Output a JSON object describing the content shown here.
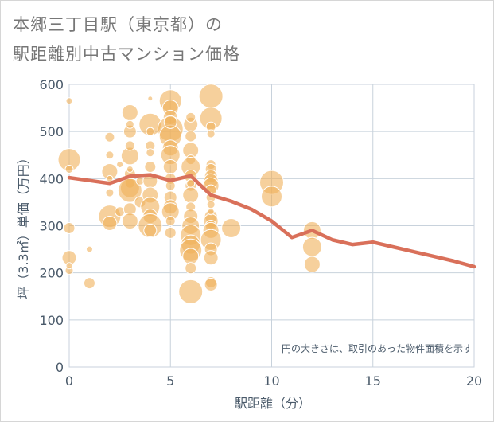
{
  "title_lines": [
    "本郷三丁目駅（東京都）の",
    "駅距離別中古マンション価格"
  ],
  "chart_data": {
    "type": "scatter+line",
    "xlabel": "駅距離（分）",
    "ylabel": "坪（3.3㎡）単価（万円）",
    "xlim": [
      0,
      20
    ],
    "ylim": [
      0,
      600
    ],
    "xticks": [
      0,
      5,
      10,
      15,
      20
    ],
    "yticks": [
      0,
      100,
      200,
      300,
      400,
      500,
      600
    ],
    "annotation": "円の大きさは、取引のあった物件面積を示す",
    "colors": {
      "bubble": "#f0b05a",
      "line": "#d9705a",
      "grid": "#c8d2dc",
      "text": "#4a5a6a"
    },
    "line": {
      "x": [
        0,
        1,
        2,
        3,
        4,
        5,
        6,
        7,
        8,
        9,
        10,
        11,
        12,
        13,
        14,
        15,
        16,
        17,
        18,
        19,
        20
      ],
      "y": [
        402,
        396,
        390,
        405,
        408,
        396,
        406,
        365,
        352,
        335,
        310,
        275,
        290,
        270,
        260,
        265,
        255,
        245,
        235,
        225,
        213
      ]
    },
    "bubbles": [
      [
        0,
        440,
        14
      ],
      [
        0,
        565,
        4
      ],
      [
        0,
        295,
        7
      ],
      [
        0,
        232,
        9
      ],
      [
        0,
        205,
        5
      ],
      [
        0,
        215,
        4
      ],
      [
        0,
        420,
        5
      ],
      [
        1,
        178,
        7
      ],
      [
        1,
        250,
        4
      ],
      [
        2,
        415,
        10
      ],
      [
        2,
        320,
        14
      ],
      [
        2,
        305,
        9
      ],
      [
        2,
        370,
        5
      ],
      [
        2,
        450,
        5
      ],
      [
        2,
        488,
        6
      ],
      [
        2,
        400,
        4
      ],
      [
        2.5,
        330,
        6
      ],
      [
        2.5,
        430,
        4
      ],
      [
        3,
        540,
        10
      ],
      [
        3,
        500,
        8
      ],
      [
        3,
        448,
        11
      ],
      [
        3,
        410,
        7
      ],
      [
        3,
        390,
        6
      ],
      [
        3,
        380,
        12
      ],
      [
        3,
        375,
        15
      ],
      [
        3,
        335,
        8
      ],
      [
        3,
        310,
        10
      ],
      [
        3,
        470,
        6
      ],
      [
        3,
        515,
        5
      ],
      [
        3,
        420,
        4
      ],
      [
        3.5,
        350,
        7
      ],
      [
        3.5,
        395,
        5
      ],
      [
        4,
        515,
        14
      ],
      [
        4,
        470,
        6
      ],
      [
        4,
        455,
        5
      ],
      [
        4,
        425,
        7
      ],
      [
        4,
        395,
        9
      ],
      [
        4,
        365,
        10
      ],
      [
        4,
        340,
        12
      ],
      [
        4,
        320,
        9
      ],
      [
        4,
        300,
        15
      ],
      [
        4,
        290,
        8
      ],
      [
        4,
        570,
        3
      ],
      [
        4,
        500,
        5
      ],
      [
        5,
        565,
        14
      ],
      [
        5,
        550,
        10
      ],
      [
        5,
        530,
        9
      ],
      [
        5,
        505,
        16
      ],
      [
        5,
        490,
        14
      ],
      [
        5,
        465,
        10
      ],
      [
        5,
        450,
        12
      ],
      [
        5,
        425,
        9
      ],
      [
        5,
        400,
        7
      ],
      [
        5,
        385,
        6
      ],
      [
        5,
        360,
        8
      ],
      [
        5,
        340,
        9
      ],
      [
        5,
        330,
        11
      ],
      [
        5,
        310,
        6
      ],
      [
        5,
        285,
        7
      ],
      [
        5,
        520,
        8
      ],
      [
        6,
        515,
        9
      ],
      [
        6,
        490,
        7
      ],
      [
        6,
        460,
        10
      ],
      [
        6,
        440,
        6
      ],
      [
        6,
        425,
        12
      ],
      [
        6,
        405,
        8
      ],
      [
        6,
        385,
        7
      ],
      [
        6,
        365,
        10
      ],
      [
        6,
        340,
        6
      ],
      [
        6,
        320,
        9
      ],
      [
        6,
        300,
        11
      ],
      [
        6,
        280,
        13
      ],
      [
        6,
        260,
        12
      ],
      [
        6,
        248,
        14
      ],
      [
        6,
        235,
        10
      ],
      [
        6,
        210,
        7
      ],
      [
        6,
        160,
        15
      ],
      [
        6,
        530,
        6
      ],
      [
        6,
        390,
        5
      ],
      [
        7,
        575,
        15
      ],
      [
        7,
        528,
        14
      ],
      [
        7,
        510,
        6
      ],
      [
        7,
        495,
        5
      ],
      [
        7,
        430,
        6
      ],
      [
        7,
        420,
        7
      ],
      [
        7,
        405,
        8
      ],
      [
        7,
        395,
        9
      ],
      [
        7,
        385,
        10
      ],
      [
        7,
        375,
        7
      ],
      [
        7,
        360,
        6
      ],
      [
        7,
        345,
        5
      ],
      [
        7,
        320,
        8
      ],
      [
        7,
        310,
        9
      ],
      [
        7,
        300,
        7
      ],
      [
        7,
        290,
        10
      ],
      [
        7,
        270,
        13
      ],
      [
        7,
        250,
        8
      ],
      [
        7,
        232,
        9
      ],
      [
        7,
        180,
        7
      ],
      [
        7,
        175,
        8
      ],
      [
        7,
        330,
        4
      ],
      [
        8,
        295,
        12
      ],
      [
        10,
        392,
        15
      ],
      [
        10,
        362,
        13
      ],
      [
        12,
        290,
        11
      ],
      [
        12,
        255,
        12
      ],
      [
        12,
        218,
        10
      ]
    ]
  }
}
